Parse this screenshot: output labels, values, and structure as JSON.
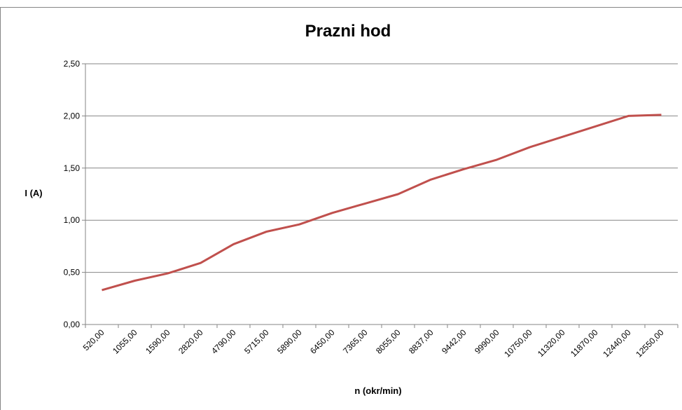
{
  "chart_data": {
    "type": "line",
    "title": "Prazni hod",
    "x_label": "n (okr/min)",
    "y_label": "I (A)",
    "categories": [
      "520,00",
      "1055,00",
      "1590,00",
      "2820,00",
      "4790,00",
      "5715,00",
      "5890,00",
      "6450,00",
      "7365,00",
      "8055,00",
      "8837,00",
      "9442,00",
      "9990,00",
      "10750,00",
      "11320,00",
      "11870,00",
      "12440,00",
      "12550,00"
    ],
    "series": [
      {
        "name": "I (A)",
        "color": "#c0504d",
        "values": [
          0.33,
          0.42,
          0.49,
          0.59,
          0.77,
          0.89,
          0.96,
          1.07,
          1.16,
          1.25,
          1.39,
          1.49,
          1.58,
          1.7,
          1.8,
          1.9,
          2.0,
          2.01
        ]
      }
    ],
    "ylim": [
      0,
      2.5
    ],
    "yticks": [
      {
        "value": 0,
        "label": "0,00"
      },
      {
        "value": 0.5,
        "label": "0,50"
      },
      {
        "value": 1,
        "label": "1,00"
      },
      {
        "value": 1.5,
        "label": "1,50"
      },
      {
        "value": 2,
        "label": "2,00"
      },
      {
        "value": 2.5,
        "label": "2,50"
      }
    ],
    "grid": true,
    "legend": false
  }
}
